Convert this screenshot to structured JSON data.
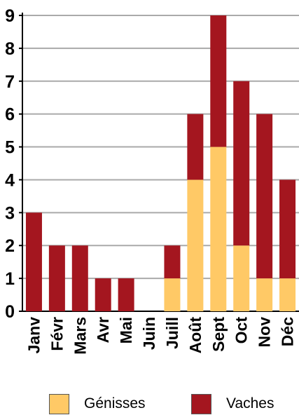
{
  "chart_data": {
    "type": "bar",
    "stacked": true,
    "categories": [
      "Janv",
      "Févr",
      "Mars",
      "Avr",
      "Mai",
      "Juin",
      "Juill",
      "Août",
      "Sept",
      "Oct",
      "Nov",
      "Déc"
    ],
    "series": [
      {
        "name": "Génisses",
        "color": "#FFC966",
        "values": [
          0,
          0,
          0,
          0,
          0,
          0,
          1,
          4,
          5,
          2,
          1,
          1
        ]
      },
      {
        "name": "Vaches",
        "color": "#A4161F",
        "values": [
          3,
          2,
          2,
          1,
          1,
          0,
          1,
          2,
          4,
          5,
          5,
          3
        ]
      }
    ],
    "yticks": [
      "0",
      "1",
      "2",
      "3",
      "4",
      "5",
      "6",
      "7",
      "8",
      "9"
    ],
    "ylim": [
      0,
      9
    ],
    "grid": true,
    "legend_position": "bottom"
  }
}
